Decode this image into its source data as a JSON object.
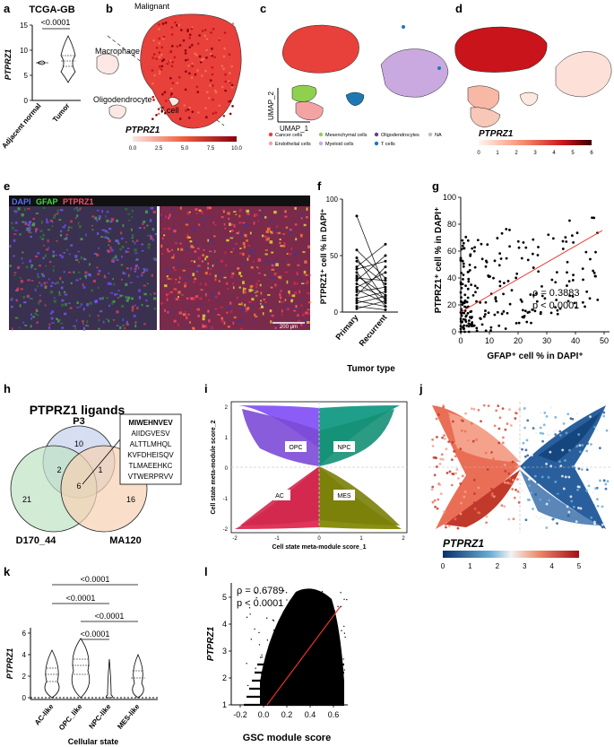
{
  "panel_labels": {
    "a": "a",
    "b": "b",
    "c": "c",
    "d": "d",
    "e": "e",
    "f": "f",
    "g": "g",
    "h": "h",
    "i": "i",
    "j": "j",
    "k": "k",
    "l": "l"
  },
  "colors": {
    "tumor_red": "#e8403a",
    "red_dark": "#7a0010",
    "accent_red": "#e8332b",
    "ac": "#e0355a",
    "opc": "#8b5cf6",
    "npc": "#1f9e8a",
    "mes": "#8a8f12"
  },
  "panel_a": {
    "title": "TCGA-GB",
    "ylabel": "PTPRZ1",
    "pvalue": "<0.0001",
    "categories": [
      "Adjacent normal",
      "Tumor"
    ],
    "yticks": [
      "0",
      "5",
      "10",
      "15"
    ]
  },
  "panel_b": {
    "labels": {
      "malignant": "Malignant",
      "macrophage": "Macrophage",
      "oligodendrocyte": "Oligodendrocyte",
      "tcell": "T cell"
    },
    "colorbar_title": "PTPRZ1",
    "colorbar_ticks": [
      "0.0",
      "2.5",
      "5.0",
      "7.5",
      "10.0"
    ]
  },
  "panel_c": {
    "umap_x": "UMAP_1",
    "umap_y": "UMAP_2",
    "legend": [
      {
        "label": "Cancer cells",
        "color": "#e8403a"
      },
      {
        "label": "Mesenchymal cells",
        "color": "#8fd14f"
      },
      {
        "label": "Oligodendrocytes",
        "color": "#6a3d9a"
      },
      {
        "label": "NA",
        "color": "#bdbdbd"
      },
      {
        "label": "Endothelial cells",
        "color": "#f4a3a3"
      },
      {
        "label": "Myeloid cells",
        "color": "#c9a9e0"
      },
      {
        "label": "T cells",
        "color": "#1f78b4"
      }
    ]
  },
  "panel_d": {
    "colorbar_title": "PTPRZ1",
    "colorbar_ticks": [
      "0",
      "1",
      "2",
      "3",
      "4",
      "5",
      "6"
    ]
  },
  "panel_e": {
    "legend": {
      "dapi": "DAPI",
      "gfap": "GFAP",
      "ptprz1": "PTPRZ1"
    },
    "scalebar": "200 μm"
  },
  "panel_f": {
    "ylabel": "PTPRZ1⁺ cell % in DAPI⁺",
    "xlabel": "Tumor type",
    "categories": [
      "Primary",
      "Recurrent"
    ],
    "yticks": [
      "0",
      "50",
      "100"
    ]
  },
  "panel_g": {
    "ylabel": "PTPRZ1⁺ cell % in DAPI⁺",
    "xlabel": "GFAP⁺ cell % in DAPI⁺",
    "rho": "ρ = 0.3883",
    "p": "p < 0.0001",
    "xticks": [
      "0",
      "10",
      "20",
      "30",
      "40",
      "50"
    ],
    "yticks": [
      "0",
      "20",
      "40",
      "60",
      "80",
      "100"
    ]
  },
  "panel_h": {
    "title": "PTPRZ1 ligands",
    "sets": {
      "p3": "P3",
      "d170": "D170_44",
      "ma120": "MA120"
    },
    "counts": {
      "p3_only": "10",
      "d170_only": "21",
      "ma120_only": "16",
      "p3_d170": "2",
      "p3_ma120": "1",
      "all": "6"
    },
    "peptides": [
      "MIWEHNVEV",
      "AIIDGVESV",
      "ALTTLMHQL",
      "KVFDHEISQV",
      "TLMAEEHKC",
      "VTWERPRVV"
    ]
  },
  "panel_i": {
    "xlabel": "Cell state meta-module score_1",
    "ylabel": "Cell state meta-module score_2",
    "quadrants": {
      "opc": "OPC",
      "npc": "NPC",
      "ac": "AC",
      "mes": "MES"
    },
    "xticks": [
      "-2",
      "-1",
      "0",
      "1",
      "2"
    ],
    "yticks": [
      "-2",
      "-1",
      "0",
      "1",
      "2"
    ]
  },
  "panel_j": {
    "colorbar_title": "PTPRZ1",
    "colorbar_ticks": [
      "0",
      "1",
      "2",
      "3",
      "4",
      "5"
    ]
  },
  "panel_k": {
    "ylabel": "PTPRZ1",
    "xlabel": "Cellular state",
    "categories": [
      "AC-like",
      "OPC_like",
      "NPC-like",
      "MES-like"
    ],
    "yticks": [
      "0",
      "2",
      "4",
      "6"
    ],
    "pvalues": [
      "<0.0001",
      "<0.0001",
      "<0.0001",
      "<0.0001"
    ]
  },
  "panel_l": {
    "ylabel": "PTPRZ1",
    "xlabel": "GSC module score",
    "rho": "ρ = 0.6789",
    "p": "p < 0.0001",
    "xticks": [
      "-0.2",
      "0.0",
      "0.2",
      "0.4",
      "0.6"
    ],
    "yticks": [
      "1",
      "2",
      "3",
      "4",
      "5"
    ]
  },
  "chart_data": [
    {
      "type": "scatter",
      "panel": "g",
      "title": "",
      "xlabel": "GFAP⁺ cell % in DAPI⁺",
      "ylabel": "PTPRZ1⁺ cell % in DAPI⁺",
      "xlim": [
        0,
        50
      ],
      "ylim": [
        0,
        100
      ],
      "annotations": [
        "ρ = 0.3883",
        "p < 0.0001"
      ]
    },
    {
      "type": "line",
      "panel": "f",
      "title": "",
      "xlabel": "Tumor type",
      "ylabel": "PTPRZ1⁺ cell % in DAPI⁺",
      "categories": [
        "Primary",
        "Recurrent"
      ],
      "ylim": [
        0,
        100
      ]
    },
    {
      "type": "scatter",
      "panel": "l",
      "title": "",
      "xlabel": "GSC module score",
      "ylabel": "PTPRZ1",
      "xlim": [
        -0.3,
        0.7
      ],
      "ylim": [
        1,
        5.5
      ],
      "annotations": [
        "ρ = 0.6789",
        "p < 0.0001"
      ]
    }
  ]
}
